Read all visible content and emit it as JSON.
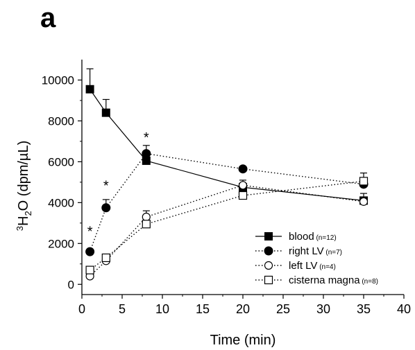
{
  "panel_label": "a",
  "chart_data": {
    "type": "line",
    "x": [
      1,
      3,
      8,
      20,
      35
    ],
    "xlabel": "Time (min)",
    "ylabel": {
      "prefix": "3",
      "main": "H",
      "sub": "2",
      "rest": "O (dpm/µL)"
    },
    "xlim": [
      0,
      40
    ],
    "ylim": [
      -500,
      11000
    ],
    "xticks": [
      0,
      5,
      10,
      15,
      20,
      25,
      30,
      35,
      40
    ],
    "yticks": [
      0,
      2000,
      4000,
      6000,
      8000,
      10000
    ],
    "grid": false,
    "legend_position": "bottom-right",
    "series": [
      {
        "name": "blood",
        "n_label": "(n=12)",
        "marker": "filled-square",
        "line": "solid",
        "values": [
          9550,
          8400,
          6050,
          4750,
          4100
        ],
        "error": [
          1000,
          650,
          350,
          350,
          350
        ]
      },
      {
        "name": "right LV",
        "n_label": "(n=7)",
        "marker": "filled-circle",
        "line": "dotted",
        "values": [
          1600,
          3750,
          6400,
          5650,
          4900
        ],
        "error": [
          0,
          400,
          400,
          0,
          0
        ]
      },
      {
        "name": "left LV",
        "n_label": "(n=4)",
        "marker": "open-circle",
        "line": "dotted",
        "values": [
          400,
          1150,
          3300,
          4850,
          4050
        ],
        "error": [
          0,
          0,
          300,
          0,
          0
        ]
      },
      {
        "name": "cisterna magna",
        "n_label": "(n=8)",
        "marker": "open-square",
        "line": "dotted",
        "values": [
          700,
          1300,
          2950,
          4350,
          5050
        ],
        "error": [
          0,
          0,
          0,
          0,
          400
        ]
      }
    ],
    "annotations": [
      {
        "text": "*",
        "x": 1,
        "y": 2700
      },
      {
        "text": "*",
        "x": 3,
        "y": 4950
      },
      {
        "text": "*",
        "x": 8,
        "y": 7300
      }
    ]
  }
}
